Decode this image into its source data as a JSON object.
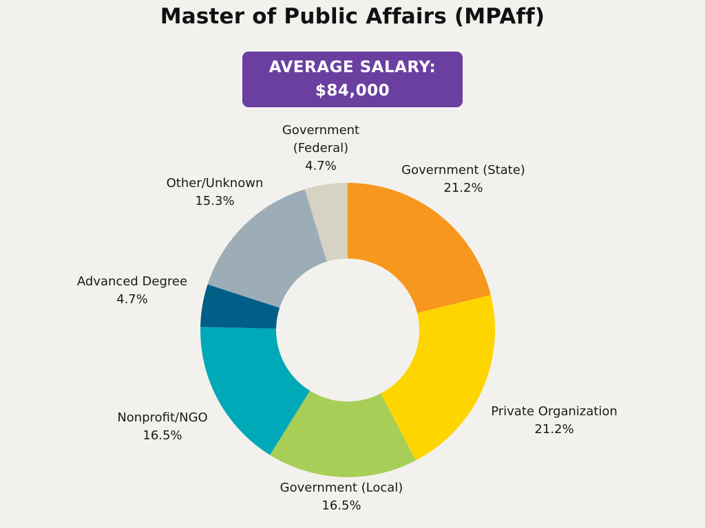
{
  "title": "Master of Public Affairs (MPAff)",
  "salary_box": {
    "line1": "AVERAGE SALARY:",
    "line2": "$84,000",
    "color": "#6b3fa0"
  },
  "chart_data": {
    "type": "pie",
    "donut": true,
    "title": "Master of Public Affairs (MPAff)",
    "slices": [
      {
        "name": "Government (State)",
        "value": 21.2,
        "label": "21.2%",
        "color": "#f7971e"
      },
      {
        "name": "Private Organization",
        "value": 21.2,
        "label": "21.2%",
        "color": "#ffd500"
      },
      {
        "name": "Government (Local)",
        "value": 16.5,
        "label": "16.5%",
        "color": "#a7ce57"
      },
      {
        "name": "Nonprofit/NGO",
        "value": 16.5,
        "label": "16.5%",
        "color": "#00a9b7"
      },
      {
        "name": "Advanced Degree",
        "value": 4.7,
        "label": "4.7%",
        "color": "#005f86"
      },
      {
        "name": "Other/Unknown",
        "value": 15.3,
        "label": "15.3%",
        "color": "#9cadb7"
      },
      {
        "name": "Government (Federal)",
        "name_lines": [
          "Government",
          "(Federal)"
        ],
        "value": 4.7,
        "label": "4.7%",
        "color": "#d6d2c4"
      }
    ]
  }
}
